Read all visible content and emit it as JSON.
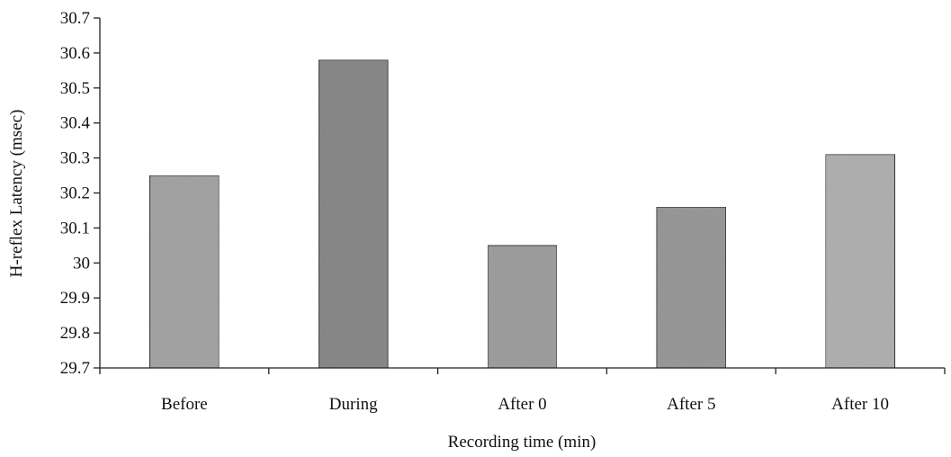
{
  "chart_data": {
    "type": "bar",
    "categories": [
      "Before",
      "During",
      "After 0",
      "After 5",
      "After 10"
    ],
    "values": [
      30.25,
      30.58,
      30.05,
      30.16,
      30.31
    ],
    "xlabel": "Recording time (min)",
    "ylabel": "H-reflex Latency (msec)",
    "ylim": [
      29.7,
      30.7
    ],
    "yticks": [
      "29.7",
      "29.8",
      "29.9",
      "30",
      "30.1",
      "30.2",
      "30.3",
      "30.4",
      "30.5",
      "30.6",
      "30.7"
    ],
    "grid": false,
    "legend": "none",
    "bar_colors": [
      "#a8a8a8",
      "#8c8c8c",
      "#a2a2a2",
      "#9c9c9c",
      "#b4b4b4"
    ]
  }
}
